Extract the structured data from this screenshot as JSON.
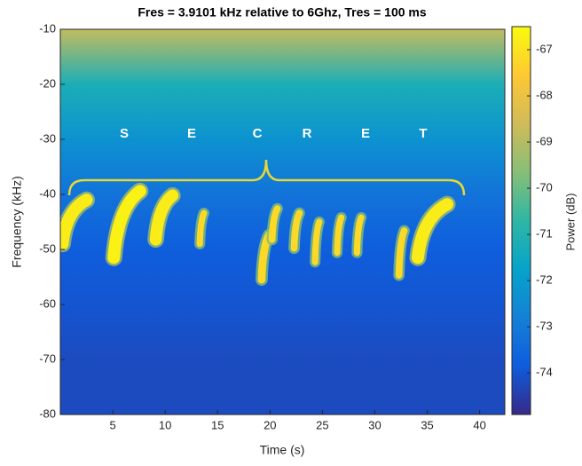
{
  "chart_data": {
    "type": "spectrogram",
    "title": "Fres = 3.9101 kHz relative to 6Ghz, Tres = 100 ms",
    "xlabel": "Time (s)",
    "ylabel": "Frequency (kHz)",
    "colorbar_label": "Power (dB)",
    "xlim": [
      0,
      42.4
    ],
    "ylim": [
      -80,
      -10
    ],
    "xticks": [
      5,
      10,
      15,
      20,
      25,
      30,
      35,
      40
    ],
    "yticks": [
      -80,
      -70,
      -60,
      -50,
      -40,
      -30,
      -20,
      -10
    ],
    "clim": [
      -74.9,
      -66.5
    ],
    "cticks": [
      -74,
      -73,
      -72,
      -71,
      -70,
      -69,
      -68,
      -67
    ],
    "colormap": "parula",
    "noise_floor": {
      "frequency": [
        -80,
        -70,
        -60,
        -50,
        -40,
        -30,
        -20,
        -10
      ],
      "power": [
        -74.2,
        -74.2,
        -74,
        -73.8,
        -73.2,
        -72.3,
        -71.2,
        -68.8
      ]
    },
    "chirps": [
      {
        "x": [
          0.2,
          2.5
        ],
        "y": [
          -49,
          -41
        ],
        "power": -66.8
      },
      {
        "x": [
          5.1,
          7.6
        ],
        "y": [
          -51.5,
          -39.4
        ],
        "power": -66.7
      },
      {
        "x": [
          9.1,
          10.7
        ],
        "y": [
          -48.2,
          -40.2
        ],
        "power": -66.8
      },
      {
        "x": [
          13.3,
          13.7
        ],
        "y": [
          -49,
          -43.4
        ],
        "power": -67.2
      },
      {
        "x": [
          19.2,
          19.9
        ],
        "y": [
          -55.5,
          -47.4
        ],
        "power": -67.2
      },
      {
        "x": [
          20.2,
          20.7
        ],
        "y": [
          -48.2,
          -42.6
        ],
        "power": -67.2
      },
      {
        "x": [
          22.3,
          22.8
        ],
        "y": [
          -49.8,
          -43.4
        ],
        "power": -67.2
      },
      {
        "x": [
          24.3,
          24.7
        ],
        "y": [
          -52.3,
          -45
        ],
        "power": -67.2
      },
      {
        "x": [
          26.4,
          26.8
        ],
        "y": [
          -50.6,
          -44.2
        ],
        "power": -67.2
      },
      {
        "x": [
          28.3,
          28.7
        ],
        "y": [
          -50.6,
          -44.2
        ],
        "power": -67.2
      },
      {
        "x": [
          32.3,
          32.8
        ],
        "y": [
          -54.7,
          -46.6
        ],
        "power": -67.2
      },
      {
        "x": [
          34.1,
          36.9
        ],
        "y": [
          -51.5,
          -41.8
        ],
        "power": -66.8
      }
    ],
    "annotations": [
      "S",
      "E",
      "C",
      "R",
      "E",
      "T"
    ]
  }
}
